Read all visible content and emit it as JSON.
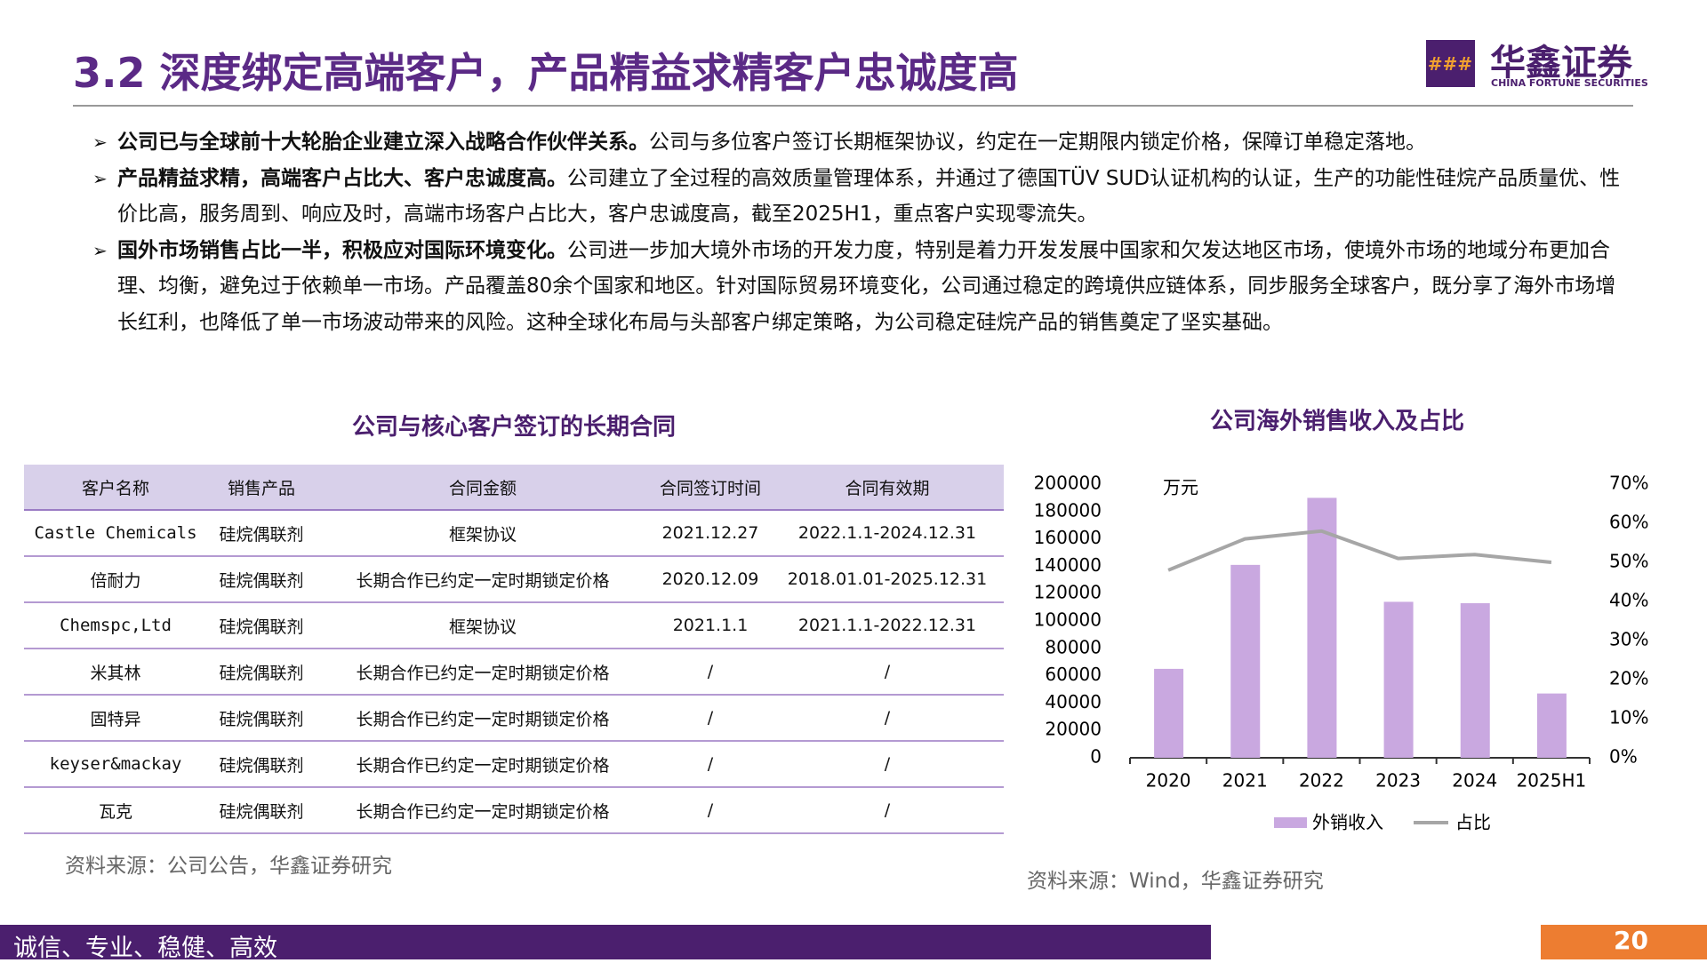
{
  "header": {
    "title": "3.2 深度绑定高端客户，产品精益求精客户忠诚度高",
    "logo_cn": "华鑫证券",
    "logo_en": "CHINA FORTUNE SECURITIES"
  },
  "bullets": [
    {
      "bold": "公司已与全球前十大轮胎企业建立深入战略合作伙伴关系。",
      "text": "公司与多位客户签订长期框架协议，约定在一定期限内锁定价格，保障订单稳定落地。"
    },
    {
      "bold": "产品精益求精，高端客户占比大、客户忠诚度高。",
      "text": "公司建立了全过程的高效质量管理体系，并通过了德国TÜV SUD认证机构的认证，生产的功能性硅烷产品质量优、性价比高，服务周到、响应及时，高端市场客户占比大，客户忠诚度高，截至2025H1，重点客户实现零流失。"
    },
    {
      "bold": "国外市场销售占比一半，积极应对国际环境变化。",
      "text": "公司进一步加大境外市场的开发力度，特别是着力开发发展中国家和欠发达地区市场，使境外市场的地域分布更加合理、均衡，避免过于依赖单一市场。产品覆盖80余个国家和地区。针对国际贸易环境变化，公司通过稳定的跨境供应链体系，同步服务全球客户，既分享了海外市场增长红利，也降低了单一市场波动带来的风险。这种全球化布局与头部客户绑定策略，为公司稳定硅烷产品的销售奠定了坚实基础。"
    }
  ],
  "table": {
    "title": "公司与核心客户签订的长期合同",
    "header": [
      "客户名称",
      "销售产品",
      "合同金额",
      "合同签订时间",
      "合同有效期"
    ],
    "rows": [
      [
        "Castle Chemicals",
        "硅烷偶联剂",
        "框架协议",
        "2021.12.27",
        "2022.1.1-2024.12.31"
      ],
      [
        "倍耐力",
        "硅烷偶联剂",
        "长期合作已约定一定时期锁定价格",
        "2020.12.09",
        "2018.01.01-2025.12.31"
      ],
      [
        "Chemspc,Ltd",
        "硅烷偶联剂",
        "框架协议",
        "2021.1.1",
        "2021.1.1-2022.12.31"
      ],
      [
        "米其林",
        "硅烷偶联剂",
        "长期合作已约定一定时期锁定价格",
        "/",
        "/"
      ],
      [
        "固特异",
        "硅烷偶联剂",
        "长期合作已约定一定时期锁定价格",
        "/",
        "/"
      ],
      [
        "keyser&mackay",
        "硅烷偶联剂",
        "长期合作已约定一定时期锁定价格",
        "/",
        "/"
      ],
      [
        "瓦克",
        "硅烷偶联剂",
        "长期合作已约定一定时期锁定价格",
        "/",
        "/"
      ]
    ],
    "source": "资料来源：公司公告，华鑫证券研究"
  },
  "chart_data": {
    "type": "bar_line",
    "title": "公司海外销售收入及占比",
    "unit": "万元",
    "categories": [
      "2020",
      "2021",
      "2022",
      "2023",
      "2024",
      "2025H1"
    ],
    "series": [
      {
        "name": "外销收入",
        "color": "#c9a8e0",
        "values": [
          65000,
          141000,
          190000,
          114000,
          113000,
          47000
        ]
      },
      {
        "name": "占比",
        "color": "#a6a6a6",
        "axis": "y2",
        "values": [
          48,
          56,
          58,
          51,
          52,
          50
        ]
      }
    ],
    "ylim": [
      0,
      200000
    ],
    "yticks": [
      0,
      20000,
      40000,
      60000,
      80000,
      100000,
      120000,
      140000,
      160000,
      180000,
      200000
    ],
    "y2lim": [
      0,
      70
    ],
    "y2ticks": [
      {
        "value": 0,
        "label": "0%"
      },
      {
        "value": 10,
        "label": "10%"
      },
      {
        "value": 20,
        "label": "20%"
      },
      {
        "value": 30,
        "label": "30%"
      },
      {
        "value": 40,
        "label": "40%"
      },
      {
        "value": 50,
        "label": "50%"
      },
      {
        "value": 60,
        "label": "60%"
      },
      {
        "value": 70,
        "label": "70%"
      }
    ],
    "source": "资料来源：Wind，华鑫证券研究"
  },
  "footer": {
    "slogan": "诚信、专业、稳健、高效",
    "page": "20"
  }
}
